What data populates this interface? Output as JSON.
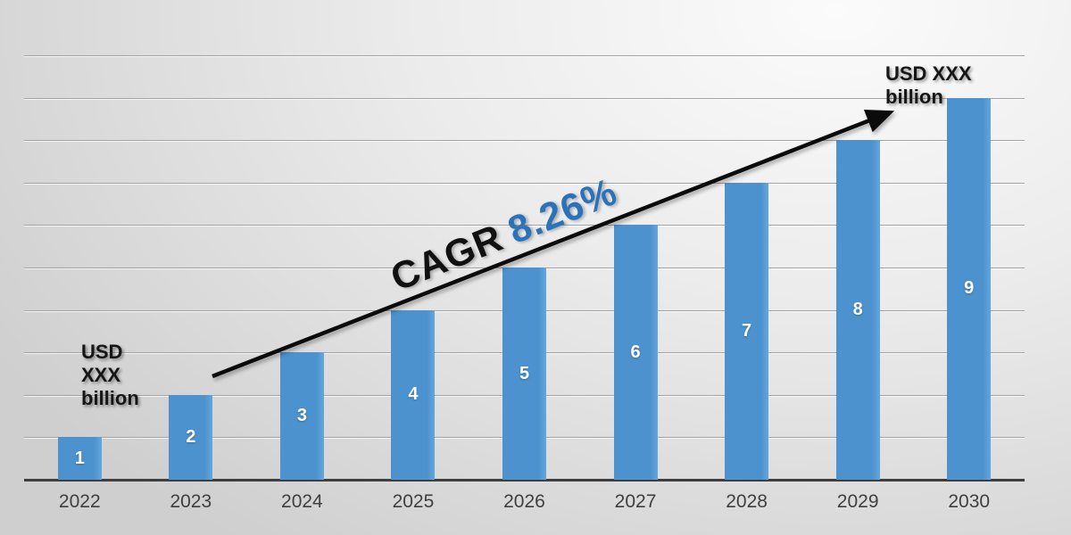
{
  "chart_data": {
    "type": "bar",
    "categories": [
      "2022",
      "2023",
      "2024",
      "2025",
      "2026",
      "2027",
      "2028",
      "2029",
      "2030"
    ],
    "values": [
      1,
      2,
      3,
      4,
      5,
      6,
      7,
      8,
      9
    ],
    "xlabel": "",
    "ylabel": "",
    "ylim": [
      0,
      10
    ],
    "gridline_interval": 1,
    "grid": true,
    "legend": "none",
    "value_label_position": "center",
    "annotations": {
      "cagr_prefix": "CAGR",
      "cagr_value": "8.26%",
      "start_label_lines": [
        "USD",
        "XXX",
        "billion"
      ],
      "end_label_lines": [
        "USD XXX",
        "billion"
      ],
      "trend_arrow": "diagonal-up"
    },
    "colors": {
      "bar": "#4B92CE",
      "cagr_prefix": "#111111",
      "cagr_value": "#2A72BA",
      "arrow": "#0B0B0B",
      "axis_line": "#3E3E3E",
      "gridline": "#A3A3A3",
      "bar_label_text": "#FFFFFF",
      "category_text": "#3F3F3F",
      "usd_label_text": "#161616"
    }
  }
}
